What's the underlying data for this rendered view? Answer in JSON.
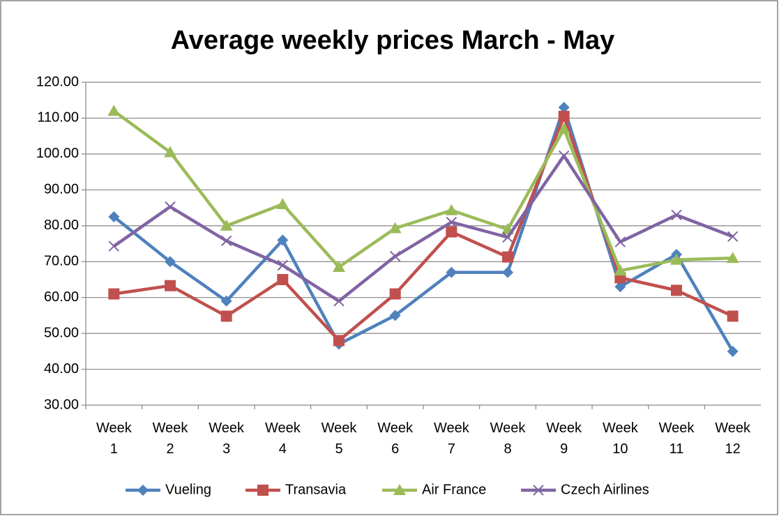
{
  "chart_data": {
    "type": "line",
    "title": "Average weekly prices March - May",
    "categories": [
      "Week 1",
      "Week 2",
      "Week 3",
      "Week 4",
      "Week 5",
      "Week 6",
      "Week 7",
      "Week 8",
      "Week 9",
      "Week 10",
      "Week 11",
      "Week 12"
    ],
    "series": [
      {
        "name": "Vueling",
        "color": "#4f81bd",
        "marker": "diamond",
        "values": [
          82.5,
          70,
          59,
          76,
          47,
          55,
          67,
          67,
          113,
          63,
          72,
          45
        ]
      },
      {
        "name": "Transavia",
        "color": "#c0504d",
        "marker": "square",
        "values": [
          61,
          63.3,
          54.8,
          65,
          48,
          61,
          78.3,
          71.3,
          110.5,
          65.5,
          62,
          54.8
        ]
      },
      {
        "name": "Air France",
        "color": "#9bbb59",
        "marker": "triangle",
        "values": [
          112,
          100.5,
          80,
          86,
          68.5,
          79.3,
          84.3,
          79,
          107,
          67.5,
          70.5,
          71
        ]
      },
      {
        "name": "Czech Airlines",
        "color": "#8064a2",
        "marker": "x",
        "values": [
          74.3,
          85.3,
          75.8,
          69,
          59,
          71.5,
          81,
          76.8,
          99.5,
          75.5,
          83,
          77
        ]
      }
    ],
    "ylim": [
      30,
      120
    ],
    "yticks": [
      {
        "value": 30,
        "label": "30.00"
      },
      {
        "value": 40,
        "label": "40.00"
      },
      {
        "value": 50,
        "label": "50.00"
      },
      {
        "value": 60,
        "label": "60.00"
      },
      {
        "value": 70,
        "label": "70.00"
      },
      {
        "value": 80,
        "label": "80.00"
      },
      {
        "value": 90,
        "label": "90.00"
      },
      {
        "value": 100,
        "label": "100.00"
      },
      {
        "value": 110,
        "label": "110.00"
      },
      {
        "value": 120,
        "label": "120.00"
      }
    ],
    "grid": true,
    "legend": "bottom"
  }
}
